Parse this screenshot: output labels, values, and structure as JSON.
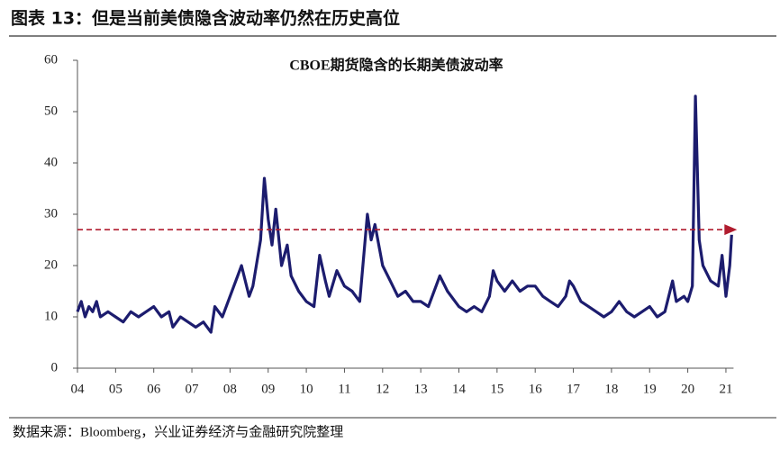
{
  "header": {
    "title": "图表 13：但是当前美债隐含波动率仍然在历史高位"
  },
  "chart_data": {
    "type": "line",
    "title": "CBOE期货隐含的长期美债波动率",
    "x": [
      2004.0,
      2004.1,
      2004.2,
      2004.3,
      2004.4,
      2004.5,
      2004.6,
      2004.8,
      2005.0,
      2005.2,
      2005.4,
      2005.6,
      2005.8,
      2006.0,
      2006.2,
      2006.4,
      2006.5,
      2006.7,
      2006.9,
      2007.1,
      2007.3,
      2007.5,
      2007.6,
      2007.8,
      2008.0,
      2008.2,
      2008.3,
      2008.5,
      2008.6,
      2008.8,
      2008.9,
      2009.0,
      2009.1,
      2009.2,
      2009.35,
      2009.5,
      2009.6,
      2009.8,
      2010.0,
      2010.2,
      2010.35,
      2010.5,
      2010.6,
      2010.8,
      2011.0,
      2011.2,
      2011.4,
      2011.6,
      2011.7,
      2011.8,
      2012.0,
      2012.2,
      2012.4,
      2012.6,
      2012.8,
      2013.0,
      2013.2,
      2013.4,
      2013.5,
      2013.7,
      2013.9,
      2014.0,
      2014.2,
      2014.4,
      2014.6,
      2014.8,
      2014.9,
      2015.0,
      2015.2,
      2015.4,
      2015.6,
      2015.8,
      2016.0,
      2016.2,
      2016.4,
      2016.6,
      2016.8,
      2016.9,
      2017.0,
      2017.2,
      2017.4,
      2017.6,
      2017.8,
      2018.0,
      2018.2,
      2018.4,
      2018.6,
      2018.8,
      2019.0,
      2019.2,
      2019.4,
      2019.6,
      2019.7,
      2019.9,
      2020.0,
      2020.12,
      2020.2,
      2020.3,
      2020.4,
      2020.6,
      2020.8,
      2020.9,
      2021.0,
      2021.1,
      2021.15
    ],
    "values": [
      11,
      13,
      10,
      12,
      11,
      13,
      10,
      11,
      10,
      9,
      11,
      10,
      11,
      12,
      10,
      11,
      8,
      10,
      9,
      8,
      9,
      7,
      12,
      10,
      14,
      18,
      20,
      14,
      16,
      25,
      37,
      29,
      24,
      31,
      20,
      24,
      18,
      15,
      13,
      12,
      22,
      17,
      14,
      19,
      16,
      15,
      13,
      30,
      25,
      28,
      20,
      17,
      14,
      15,
      13,
      13,
      12,
      16,
      18,
      15,
      13,
      12,
      11,
      12,
      11,
      14,
      19,
      17,
      15,
      17,
      15,
      16,
      16,
      14,
      13,
      12,
      14,
      17,
      16,
      13,
      12,
      11,
      10,
      11,
      13,
      11,
      10,
      11,
      12,
      10,
      11,
      17,
      13,
      14,
      13,
      16,
      53,
      25,
      20,
      17,
      16,
      22,
      14,
      20,
      26
    ],
    "color": "#1c1c6e",
    "reference_value": 27,
    "reference_color": "#b01c2e",
    "xlim": [
      2004,
      2021.2
    ],
    "xticks": [
      {
        "value": 2004,
        "label": "04"
      },
      {
        "value": 2005,
        "label": "05"
      },
      {
        "value": 2006,
        "label": "06"
      },
      {
        "value": 2007,
        "label": "07"
      },
      {
        "value": 2008,
        "label": "08"
      },
      {
        "value": 2009,
        "label": "09"
      },
      {
        "value": 2010,
        "label": "10"
      },
      {
        "value": 2011,
        "label": "11"
      },
      {
        "value": 2012,
        "label": "12"
      },
      {
        "value": 2013,
        "label": "13"
      },
      {
        "value": 2014,
        "label": "14"
      },
      {
        "value": 2015,
        "label": "15"
      },
      {
        "value": 2016,
        "label": "16"
      },
      {
        "value": 2017,
        "label": "17"
      },
      {
        "value": 2018,
        "label": "18"
      },
      {
        "value": 2019,
        "label": "19"
      },
      {
        "value": 2020,
        "label": "20"
      },
      {
        "value": 2021,
        "label": "21"
      }
    ],
    "ylim": [
      0,
      60
    ],
    "yticks": [
      0,
      10,
      20,
      30,
      40,
      50,
      60
    ]
  },
  "footer": {
    "source": "数据来源：Bloomberg，兴业证券经济与金融研究院整理"
  }
}
